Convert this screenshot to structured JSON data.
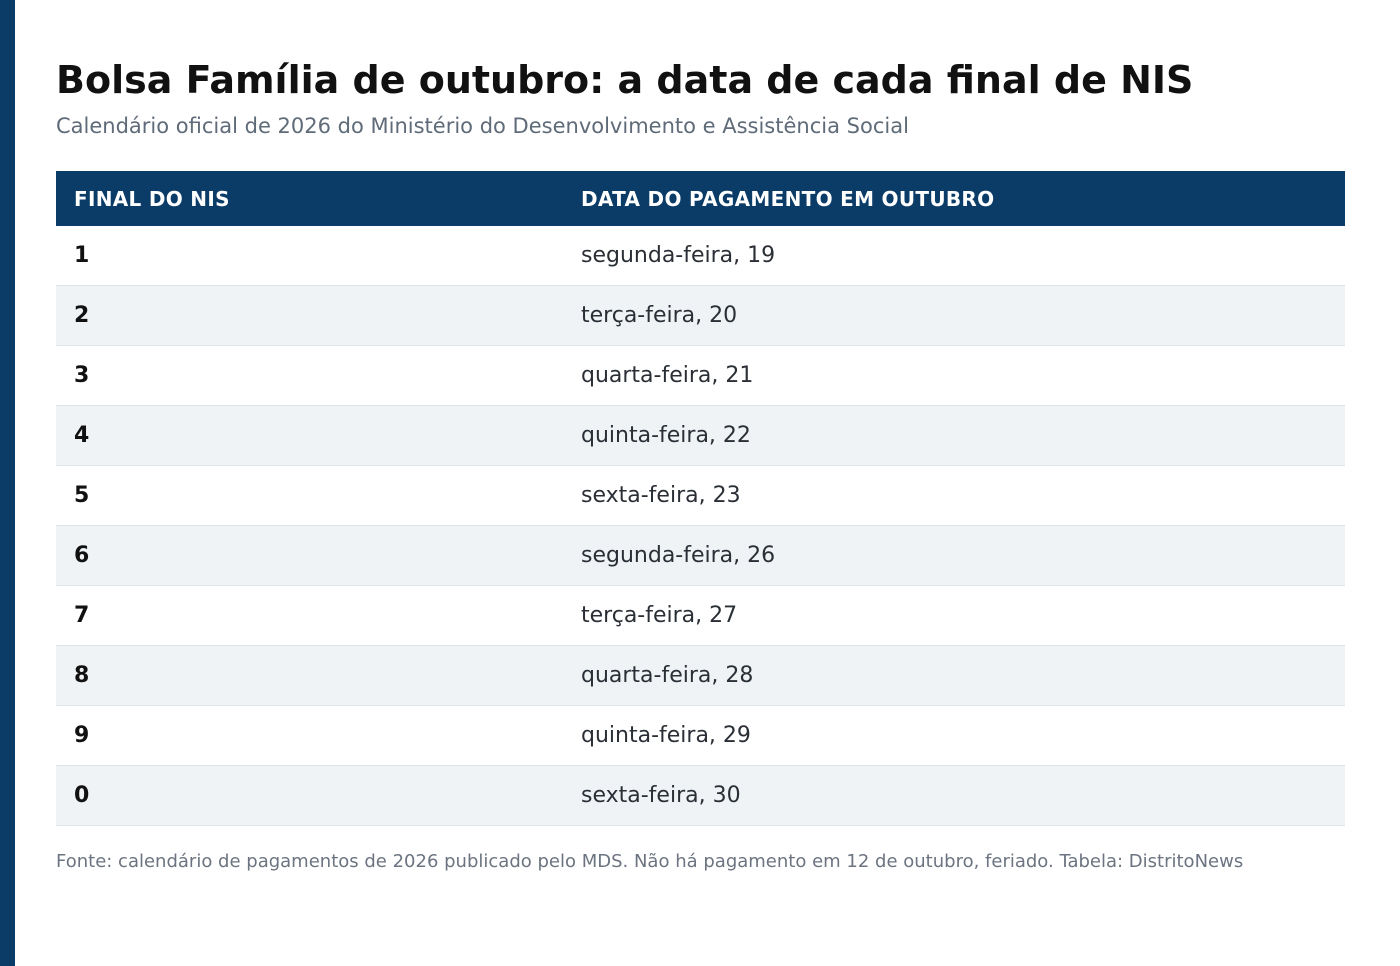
{
  "header": {
    "title": "Bolsa Família de outubro: a data de cada final de NIS",
    "subtitle": "Calendário oficial de 2026 do Ministério do Desenvolvimento e Assistência Social"
  },
  "table": {
    "columns": [
      "FINAL DO NIS",
      "DATA DO PAGAMENTO EM OUTUBRO"
    ],
    "rows": [
      {
        "final": "1",
        "date": "segunda-feira, 19"
      },
      {
        "final": "2",
        "date": "terça-feira, 20"
      },
      {
        "final": "3",
        "date": "quarta-feira, 21"
      },
      {
        "final": "4",
        "date": "quinta-feira, 22"
      },
      {
        "final": "5",
        "date": "sexta-feira, 23"
      },
      {
        "final": "6",
        "date": "segunda-feira, 26"
      },
      {
        "final": "7",
        "date": "terça-feira, 27"
      },
      {
        "final": "8",
        "date": "quarta-feira, 28"
      },
      {
        "final": "9",
        "date": "quinta-feira, 29"
      },
      {
        "final": "0",
        "date": "sexta-feira, 30"
      }
    ]
  },
  "footnote": "Fonte: calendário de pagamentos de 2026 publicado pelo MDS. Não há pagamento em 12 de outubro, feriado. Tabela: DistritoNews",
  "colors": {
    "accent": "#0b3c68",
    "row_stripe": "#eff3f6"
  }
}
